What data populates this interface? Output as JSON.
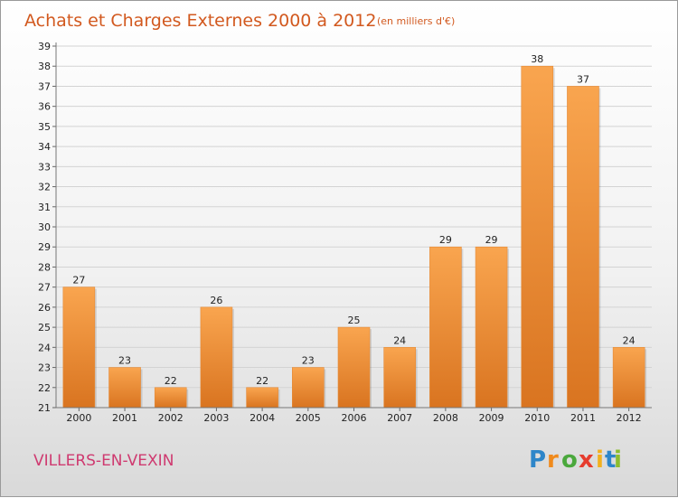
{
  "chart_data": {
    "type": "bar",
    "title": "Achats et Charges Externes 2000 à 2012",
    "subtitle": "(en milliers d'€)",
    "categories": [
      "2000",
      "2001",
      "2002",
      "2003",
      "2004",
      "2005",
      "2006",
      "2007",
      "2008",
      "2009",
      "2010",
      "2011",
      "2012"
    ],
    "values": [
      27,
      23,
      22,
      26,
      22,
      23,
      25,
      24,
      29,
      29,
      38,
      37,
      24
    ],
    "ylim": [
      21,
      39
    ],
    "yticks": [
      "21",
      "22",
      "23",
      "24",
      "25",
      "26",
      "27",
      "28",
      "29",
      "30",
      "31",
      "32",
      "33",
      "34",
      "35",
      "36",
      "37",
      "38",
      "39"
    ],
    "grid": true,
    "bar_color_top": "#f9a54f",
    "bar_color_bottom": "#d97420"
  },
  "location_label": "VILLERS-EN-VEXIN",
  "logo": {
    "letters": [
      "P",
      "r",
      "o",
      "x",
      "i",
      "t",
      "i"
    ],
    "colors": [
      "#2e86c9",
      "#f08a1c",
      "#4aa83c",
      "#e63c2e",
      "#f2b01e",
      "#2e86c9",
      "#8cbd2e"
    ]
  }
}
